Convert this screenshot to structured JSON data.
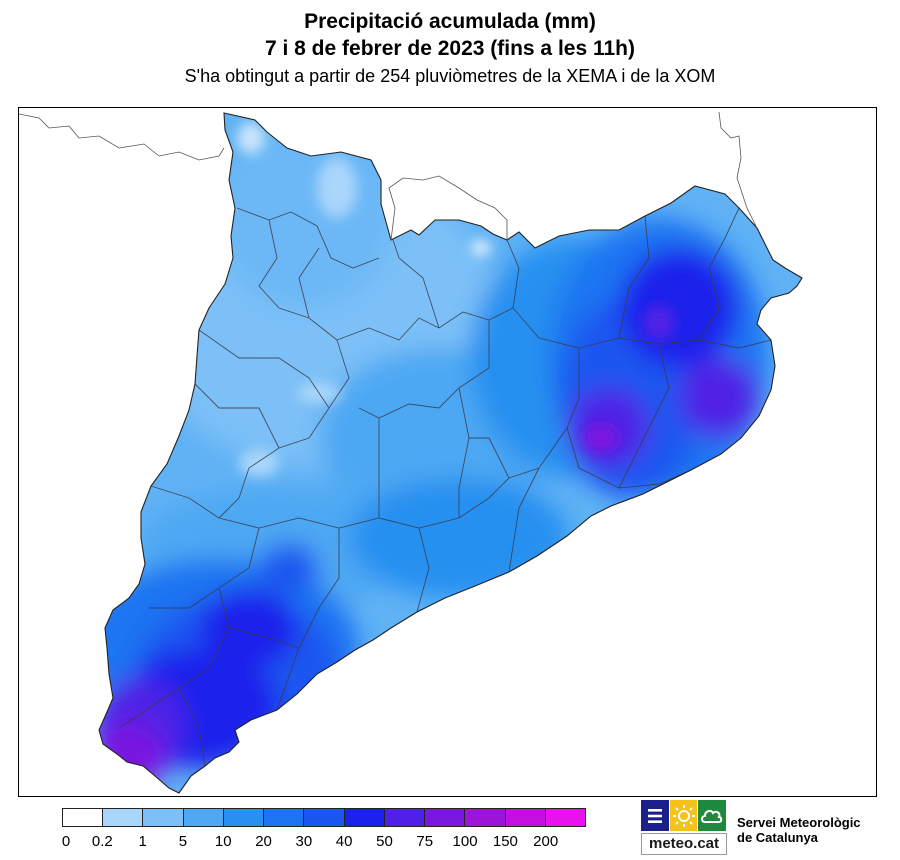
{
  "header": {
    "title_line1": "Precipitació acumulada (mm)",
    "title_line2": "7 i 8 de febrer de 2023 (fins a les 11h)",
    "subtitle": "S'ha obtingut a partir de 254 pluviòmetres de la XEMA i de la XOM"
  },
  "legend": {
    "colors": [
      "#ffffff",
      "#a9d6fa",
      "#7cc0f7",
      "#4ea8f3",
      "#2790f0",
      "#1d74f2",
      "#1c56f0",
      "#1a22ec",
      "#4f20e6",
      "#7a18e0",
      "#9d14d8",
      "#c30fe0",
      "#e812ee"
    ],
    "labels": [
      "0",
      "0.2",
      "1",
      "5",
      "10",
      "20",
      "30",
      "40",
      "50",
      "75",
      "100",
      "150",
      "200"
    ]
  },
  "logo": {
    "text": "meteo.cat",
    "square_colors": [
      "#1b1f8a",
      "#f4c21b",
      "#1f8a3e"
    ],
    "icons": [
      "menu-lines-icon",
      "sun-icon",
      "cloud-icon"
    ]
  },
  "organization": {
    "line1": "Servei Meteorològic",
    "line2": "de Catalunya"
  }
}
